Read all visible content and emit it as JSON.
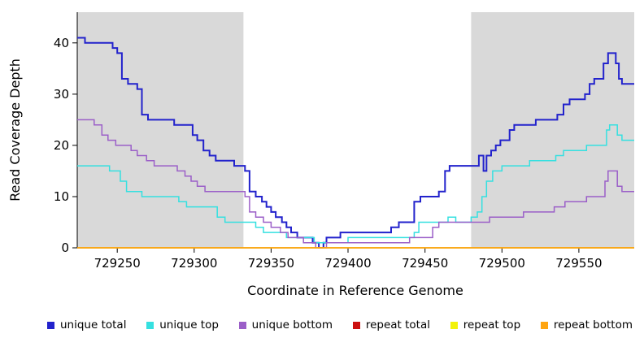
{
  "chart_data": {
    "type": "line",
    "subtype": "step",
    "title": "",
    "xlabel": "Coordinate in Reference Genome",
    "ylabel": "Read Coverage Depth",
    "xlim": [
      729224,
      729586
    ],
    "ylim": [
      0,
      46
    ],
    "x_ticks": [
      729250,
      729300,
      729350,
      729400,
      729450,
      729500,
      729550
    ],
    "y_ticks": [
      0,
      10,
      20,
      30,
      40
    ],
    "grid": false,
    "legend_position": "bottom",
    "shaded_color": "#d9d9d9",
    "shaded_regions": [
      [
        729224,
        729332
      ],
      [
        729480,
        729586
      ]
    ],
    "series": [
      {
        "name": "unique total",
        "color": "#2222cc",
        "width": 2,
        "points": [
          [
            729224,
            41
          ],
          [
            729229,
            40
          ],
          [
            729247,
            39
          ],
          [
            729250,
            38
          ],
          [
            729253,
            33
          ],
          [
            729257,
            32
          ],
          [
            729263,
            31
          ],
          [
            729266,
            26
          ],
          [
            729270,
            25
          ],
          [
            729287,
            24
          ],
          [
            729299,
            22
          ],
          [
            729302,
            21
          ],
          [
            729306,
            19
          ],
          [
            729310,
            18
          ],
          [
            729314,
            17
          ],
          [
            729326,
            16
          ],
          [
            729333,
            15
          ],
          [
            729336,
            11
          ],
          [
            729340,
            10
          ],
          [
            729344,
            9
          ],
          [
            729347,
            8
          ],
          [
            729350,
            7
          ],
          [
            729353,
            6
          ],
          [
            729357,
            5
          ],
          [
            729360,
            4
          ],
          [
            729363,
            3
          ],
          [
            729367,
            2
          ],
          [
            729377,
            1
          ],
          [
            729381,
            0
          ],
          [
            729384,
            1
          ],
          [
            729386,
            2
          ],
          [
            729395,
            3
          ],
          [
            729424,
            3
          ],
          [
            729428,
            4
          ],
          [
            729433,
            5
          ],
          [
            729443,
            9
          ],
          [
            729447,
            10
          ],
          [
            729459,
            11
          ],
          [
            729463,
            15
          ],
          [
            729466,
            16
          ],
          [
            729485,
            18
          ],
          [
            729488,
            15
          ],
          [
            729490,
            18
          ],
          [
            729493,
            19
          ],
          [
            729496,
            20
          ],
          [
            729499,
            21
          ],
          [
            729505,
            23
          ],
          [
            729508,
            24
          ],
          [
            729522,
            25
          ],
          [
            729536,
            26
          ],
          [
            729540,
            28
          ],
          [
            729544,
            29
          ],
          [
            729554,
            30
          ],
          [
            729557,
            32
          ],
          [
            729560,
            33
          ],
          [
            729566,
            36
          ],
          [
            729569,
            38
          ],
          [
            729574,
            36
          ],
          [
            729576,
            33
          ],
          [
            729578,
            32
          ]
        ]
      },
      {
        "name": "unique top",
        "color": "#35e0e0",
        "width": 1.5,
        "points": [
          [
            729224,
            16
          ],
          [
            729245,
            15
          ],
          [
            729252,
            13
          ],
          [
            729256,
            11
          ],
          [
            729266,
            10
          ],
          [
            729290,
            9
          ],
          [
            729295,
            8
          ],
          [
            729315,
            6
          ],
          [
            729320,
            5
          ],
          [
            729340,
            4
          ],
          [
            729345,
            3
          ],
          [
            729360,
            2
          ],
          [
            729378,
            1
          ],
          [
            729400,
            2
          ],
          [
            729443,
            3
          ],
          [
            729446,
            5
          ],
          [
            729465,
            6
          ],
          [
            729470,
            5
          ],
          [
            729480,
            6
          ],
          [
            729484,
            7
          ],
          [
            729487,
            10
          ],
          [
            729490,
            13
          ],
          [
            729494,
            15
          ],
          [
            729500,
            16
          ],
          [
            729518,
            17
          ],
          [
            729535,
            18
          ],
          [
            729540,
            19
          ],
          [
            729555,
            20
          ],
          [
            729568,
            23
          ],
          [
            729570,
            24
          ],
          [
            729575,
            22
          ],
          [
            729578,
            21
          ]
        ]
      },
      {
        "name": "unique bottom",
        "color": "#9b5fc8",
        "width": 1.5,
        "points": [
          [
            729224,
            25
          ],
          [
            729235,
            24
          ],
          [
            729240,
            22
          ],
          [
            729244,
            21
          ],
          [
            729249,
            20
          ],
          [
            729259,
            19
          ],
          [
            729263,
            18
          ],
          [
            729269,
            17
          ],
          [
            729274,
            16
          ],
          [
            729289,
            15
          ],
          [
            729294,
            14
          ],
          [
            729298,
            13
          ],
          [
            729302,
            12
          ],
          [
            729307,
            11
          ],
          [
            729333,
            10
          ],
          [
            729336,
            7
          ],
          [
            729340,
            6
          ],
          [
            729345,
            5
          ],
          [
            729350,
            4
          ],
          [
            729356,
            3
          ],
          [
            729361,
            2
          ],
          [
            729371,
            1
          ],
          [
            729379,
            0
          ],
          [
            729386,
            1
          ],
          [
            729440,
            2
          ],
          [
            729455,
            4
          ],
          [
            729459,
            5
          ],
          [
            729492,
            6
          ],
          [
            729514,
            7
          ],
          [
            729534,
            8
          ],
          [
            729541,
            9
          ],
          [
            729555,
            10
          ],
          [
            729567,
            13
          ],
          [
            729569,
            15
          ],
          [
            729575,
            12
          ],
          [
            729578,
            11
          ]
        ]
      },
      {
        "name": "repeat total",
        "color": "#cc1111",
        "width": 1.5,
        "points": [
          [
            729224,
            0
          ],
          [
            729586,
            0
          ]
        ]
      },
      {
        "name": "repeat top",
        "color": "#f2f20a",
        "width": 1.5,
        "points": [
          [
            729224,
            0
          ],
          [
            729586,
            0
          ]
        ]
      },
      {
        "name": "repeat bottom",
        "color": "#ffa510",
        "width": 1.5,
        "points": [
          [
            729224,
            0
          ],
          [
            729586,
            0
          ]
        ]
      }
    ],
    "legend": [
      {
        "label": "unique total",
        "color": "#2222cc"
      },
      {
        "label": "unique top",
        "color": "#35e0e0"
      },
      {
        "label": "unique bottom",
        "color": "#9b5fc8"
      },
      {
        "label": "repeat total",
        "color": "#cc1111"
      },
      {
        "label": "repeat top",
        "color": "#f2f20a"
      },
      {
        "label": "repeat bottom",
        "color": "#ffa510"
      }
    ]
  }
}
